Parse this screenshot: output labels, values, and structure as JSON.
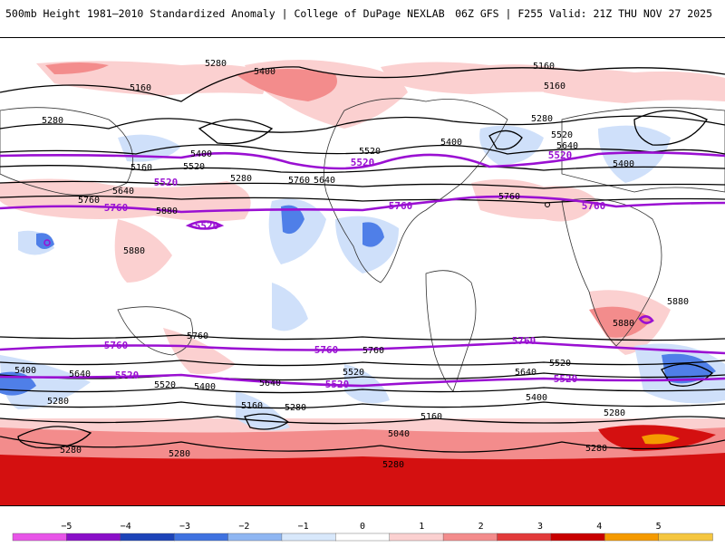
{
  "header": {
    "title": "500mb Height 1981–2010 Standardized Anomaly | College of DuPage NEXLAB",
    "run_info": "06Z GFS | F255 Valid: 21Z THU NOV 27 2025"
  },
  "contour_labels": [
    {
      "text": "5280",
      "kind": "black"
    },
    {
      "text": "5400",
      "kind": "black"
    },
    {
      "text": "5160",
      "kind": "black"
    },
    {
      "text": "5280",
      "kind": "black"
    },
    {
      "text": "5400",
      "kind": "black"
    },
    {
      "text": "5520",
      "kind": "black"
    },
    {
      "text": "5160",
      "kind": "black"
    },
    {
      "text": "5640",
      "kind": "black"
    },
    {
      "text": "5760",
      "kind": "black"
    },
    {
      "text": "5880",
      "kind": "black"
    },
    {
      "text": "5880",
      "kind": "black"
    },
    {
      "text": "5280",
      "kind": "black"
    },
    {
      "text": "5760",
      "kind": "black"
    },
    {
      "text": "5640",
      "kind": "black"
    },
    {
      "text": "5520",
      "kind": "black"
    },
    {
      "text": "5400",
      "kind": "black"
    },
    {
      "text": "5160",
      "kind": "black"
    },
    {
      "text": "5160",
      "kind": "black"
    },
    {
      "text": "5280",
      "kind": "black"
    },
    {
      "text": "5520",
      "kind": "black"
    },
    {
      "text": "5640",
      "kind": "black"
    },
    {
      "text": "5400",
      "kind": "black"
    },
    {
      "text": "5760",
      "kind": "black"
    },
    {
      "text": "5880",
      "kind": "black"
    },
    {
      "text": "5880",
      "kind": "black"
    },
    {
      "text": "5760",
      "kind": "black"
    },
    {
      "text": "5760",
      "kind": "black"
    },
    {
      "text": "5400",
      "kind": "black"
    },
    {
      "text": "5640",
      "kind": "black"
    },
    {
      "text": "5520",
      "kind": "black"
    },
    {
      "text": "5400",
      "kind": "black"
    },
    {
      "text": "5280",
      "kind": "black"
    },
    {
      "text": "5640",
      "kind": "black"
    },
    {
      "text": "5160",
      "kind": "black"
    },
    {
      "text": "5280",
      "kind": "black"
    },
    {
      "text": "5520",
      "kind": "black"
    },
    {
      "text": "5160",
      "kind": "black"
    },
    {
      "text": "5040",
      "kind": "black"
    },
    {
      "text": "5640",
      "kind": "black"
    },
    {
      "text": "5520",
      "kind": "black"
    },
    {
      "text": "5400",
      "kind": "black"
    },
    {
      "text": "5280",
      "kind": "black"
    },
    {
      "text": "5280",
      "kind": "black"
    },
    {
      "text": "5280",
      "kind": "black"
    },
    {
      "text": "5280",
      "kind": "black"
    },
    {
      "text": "5280",
      "kind": "black"
    },
    {
      "text": "5520",
      "kind": "purple"
    },
    {
      "text": "5760",
      "kind": "purple"
    },
    {
      "text": "5520",
      "kind": "purple"
    },
    {
      "text": "5760",
      "kind": "purple"
    },
    {
      "text": "5520",
      "kind": "purple"
    },
    {
      "text": "5760",
      "kind": "purple"
    },
    {
      "text": "5760",
      "kind": "purple"
    },
    {
      "text": "5520",
      "kind": "purple"
    },
    {
      "text": "5760",
      "kind": "purple"
    },
    {
      "text": "5520",
      "kind": "purple"
    },
    {
      "text": "5760",
      "kind": "purple"
    },
    {
      "text": "5520",
      "kind": "purple"
    },
    {
      "text": "5520",
      "kind": "purple"
    }
  ],
  "colorbar": {
    "ticks": [
      "−5",
      "−4",
      "−3",
      "−2",
      "−1",
      "0",
      "1",
      "2",
      "3",
      "4",
      "5"
    ],
    "colors": [
      "#e855e8",
      "#8a0fc8",
      "#1d44b8",
      "#3f72e0",
      "#8fb6f2",
      "#d8e8fb",
      "#ffffff",
      "#fbd0d0",
      "#f38c8c",
      "#e23a3a",
      "#c80000",
      "#f59a00",
      "#f5c640"
    ]
  },
  "colors": {
    "purple_line": "#9a10d2",
    "anomaly_pos_light": "#fbd0d0",
    "anomaly_pos_mid": "#f38c8c",
    "anomaly_pos_strong": "#d41010",
    "anomaly_neg_light": "#cfe0fa",
    "anomaly_neg_mid": "#4f7fe8"
  }
}
